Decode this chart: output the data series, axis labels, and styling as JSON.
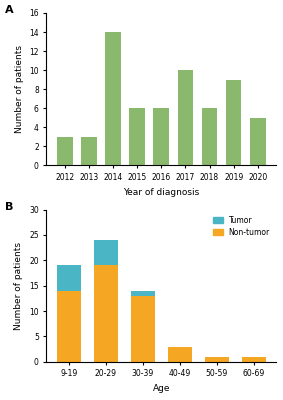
{
  "chart_a": {
    "years": [
      2012,
      2013,
      2014,
      2015,
      2016,
      2017,
      2018,
      2019,
      2020
    ],
    "values": [
      3,
      3,
      14,
      6,
      6,
      10,
      6,
      9,
      5
    ],
    "bar_color": "#8ab96e",
    "xlabel": "Year of diagnosis",
    "ylabel": "Number of patients",
    "ylim": [
      0,
      16
    ],
    "yticks": [
      0,
      2,
      4,
      6,
      8,
      10,
      12,
      14,
      16
    ],
    "label": "A"
  },
  "chart_b": {
    "age_groups": [
      "9-19",
      "20-29",
      "30-39",
      "40-49",
      "50-59",
      "60-69"
    ],
    "non_tumor": [
      14,
      19,
      13,
      3,
      1,
      1
    ],
    "tumor": [
      5,
      5,
      1,
      0,
      0,
      0
    ],
    "color_non_tumor": "#f5a623",
    "color_tumor": "#4ab5c4",
    "xlabel": "Age",
    "ylabel": "Number of patients",
    "ylim": [
      0,
      30
    ],
    "yticks": [
      0,
      5,
      10,
      15,
      20,
      25,
      30
    ],
    "legend_tumor": "Tumor",
    "legend_non_tumor": "Non-tumor",
    "label": "B"
  }
}
